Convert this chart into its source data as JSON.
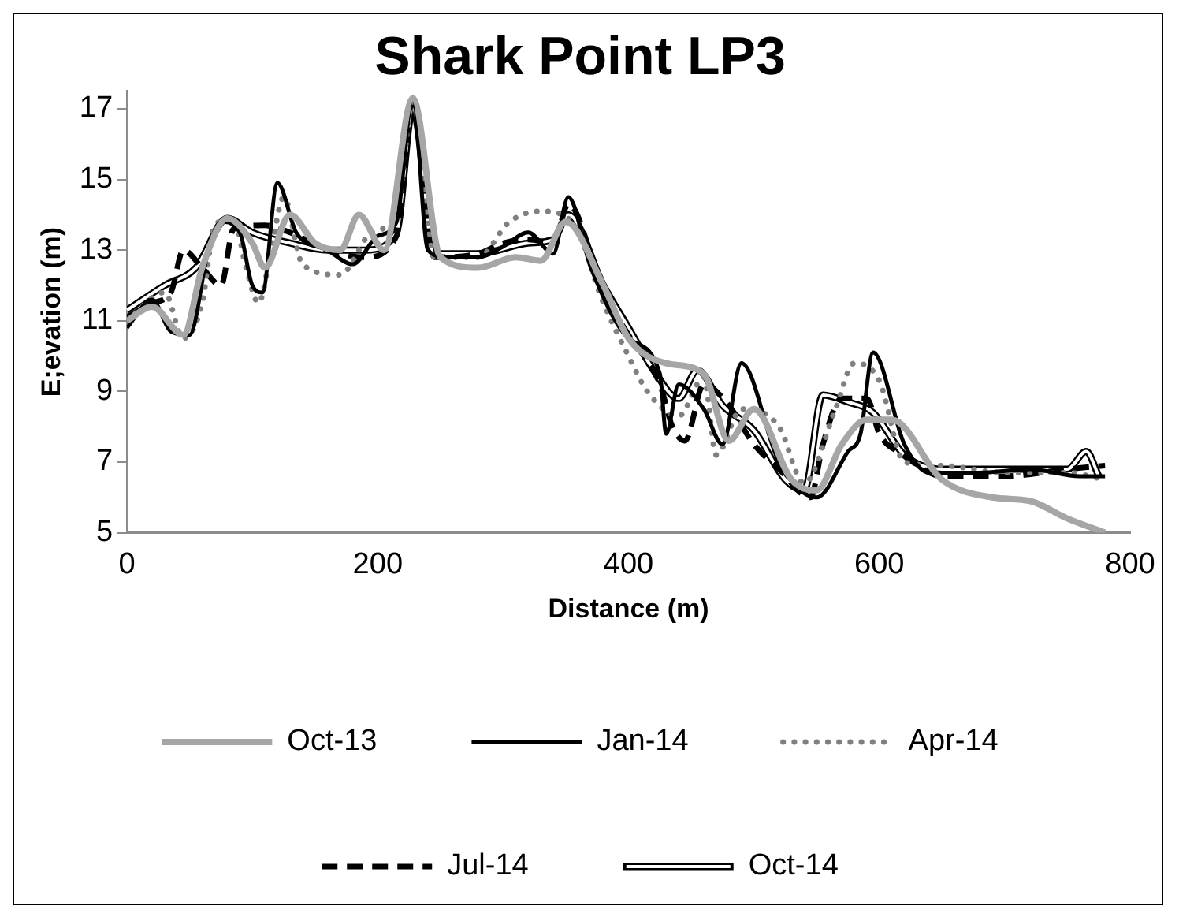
{
  "chart_data": {
    "type": "line",
    "title": "Shark Point LP3",
    "xlabel": "Distance (m)",
    "ylabel": "E;evation (m)",
    "xlim": [
      0,
      800
    ],
    "xticks": [
      0,
      200,
      400,
      600,
      800
    ],
    "ylim": [
      5,
      17.5
    ],
    "yticks": [
      5,
      7,
      9,
      11,
      13,
      15,
      17
    ],
    "grid": false,
    "legend": "bottom",
    "marker": "none",
    "series": [
      {
        "name": "Oct-13",
        "color": "#a6a6a6",
        "line_style": "solid",
        "x": [
          0,
          20,
          45,
          60,
          80,
          100,
          110,
          130,
          150,
          170,
          185,
          205,
          228,
          250,
          280,
          310,
          330,
          350,
          380,
          400,
          430,
          460,
          480,
          500,
          530,
          550,
          570,
          590,
          610,
          650,
          690,
          720,
          750,
          780
        ],
        "values": [
          11,
          11.4,
          10.6,
          12.5,
          13.9,
          13.2,
          12.5,
          14.0,
          13.2,
          13.0,
          14.0,
          13.0,
          17.3,
          12.8,
          12.5,
          12.8,
          12.7,
          13.8,
          12.0,
          10.5,
          9.8,
          9.5,
          7.6,
          8.5,
          6.5,
          6.2,
          7.5,
          8.2,
          8.2,
          6.5,
          6.0,
          5.9,
          5.4,
          5.0
        ]
      },
      {
        "name": "Jan-14",
        "color": "#000000",
        "line_style": "solid",
        "x": [
          0,
          20,
          35,
          50,
          65,
          75,
          90,
          100,
          108,
          120,
          135,
          160,
          180,
          200,
          215,
          228,
          240,
          255,
          280,
          300,
          320,
          340,
          352,
          370,
          400,
          425,
          430,
          440,
          460,
          475,
          490,
          520,
          550,
          575,
          585,
          595,
          620,
          640,
          680,
          720,
          760,
          780
        ],
        "values": [
          10.8,
          11.6,
          10.7,
          10.6,
          13.0,
          13.8,
          13.5,
          12.0,
          11.8,
          14.9,
          13.5,
          13.0,
          12.6,
          13.4,
          13.8,
          17.3,
          13.0,
          12.8,
          12.8,
          13.1,
          13.5,
          12.9,
          14.5,
          12.5,
          10.5,
          9.5,
          7.8,
          9.2,
          8.5,
          7.5,
          9.8,
          7.0,
          6.0,
          7.3,
          7.8,
          10.1,
          7.5,
          6.7,
          6.7,
          6.8,
          6.6,
          6.6
        ]
      },
      {
        "name": "Apr-14",
        "color": "#808080",
        "line_style": "dotted",
        "x": [
          0,
          30,
          45,
          60,
          70,
          85,
          95,
          105,
          115,
          125,
          140,
          170,
          195,
          215,
          228,
          245,
          280,
          305,
          330,
          355,
          380,
          400,
          415,
          440,
          460,
          470,
          490,
          520,
          540,
          565,
          580,
          600,
          620,
          650,
          700,
          750,
          780
        ],
        "values": [
          11,
          11.8,
          10.5,
          11.5,
          13.7,
          13.9,
          12.5,
          11.5,
          13.0,
          14.5,
          12.6,
          12.3,
          13.5,
          14.0,
          17.2,
          12.8,
          12.8,
          13.8,
          14.1,
          13.8,
          11.5,
          10.0,
          9.0,
          8.3,
          9.4,
          7.2,
          8.5,
          8.0,
          6.4,
          8.5,
          9.8,
          9.3,
          7.0,
          6.9,
          6.7,
          6.7,
          6.5
        ]
      },
      {
        "name": "Jul-14",
        "color": "#000000",
        "line_style": "dashed",
        "x": [
          0,
          20,
          35,
          45,
          60,
          75,
          85,
          110,
          130,
          160,
          190,
          215,
          228,
          245,
          280,
          300,
          320,
          340,
          352,
          380,
          400,
          425,
          435,
          445,
          460,
          480,
          500,
          520,
          545,
          555,
          570,
          590,
          600,
          620,
          650,
          700,
          750,
          780
        ],
        "values": [
          11.1,
          11.5,
          11.8,
          13.0,
          12.5,
          12.0,
          13.6,
          13.7,
          13.5,
          13.0,
          12.8,
          13.4,
          17.3,
          12.8,
          12.9,
          13.2,
          13.3,
          13.2,
          14.3,
          11.8,
          10.6,
          9.2,
          8.0,
          7.6,
          9.2,
          8.6,
          7.5,
          6.8,
          6.0,
          7.5,
          8.8,
          8.8,
          7.8,
          7.2,
          6.6,
          6.6,
          6.8,
          6.9
        ]
      },
      {
        "name": "Oct-14",
        "color": "#000000",
        "line_style": "solid",
        "x": [
          0,
          30,
          55,
          80,
          100,
          130,
          160,
          190,
          215,
          228,
          245,
          280,
          320,
          340,
          352,
          380,
          400,
          420,
          440,
          455,
          475,
          500,
          525,
          540,
          555,
          575,
          595,
          620,
          650,
          700,
          750,
          765,
          775
        ],
        "values": [
          11.3,
          12.0,
          12.5,
          13.9,
          13.5,
          13.2,
          13.0,
          13.0,
          13.5,
          17.0,
          12.9,
          12.9,
          13.2,
          13.3,
          14.0,
          12.0,
          10.8,
          9.6,
          8.8,
          9.6,
          8.6,
          7.9,
          6.5,
          6.2,
          8.9,
          8.7,
          8.4,
          7.2,
          6.8,
          6.8,
          6.8,
          7.3,
          6.6
        ]
      }
    ]
  }
}
